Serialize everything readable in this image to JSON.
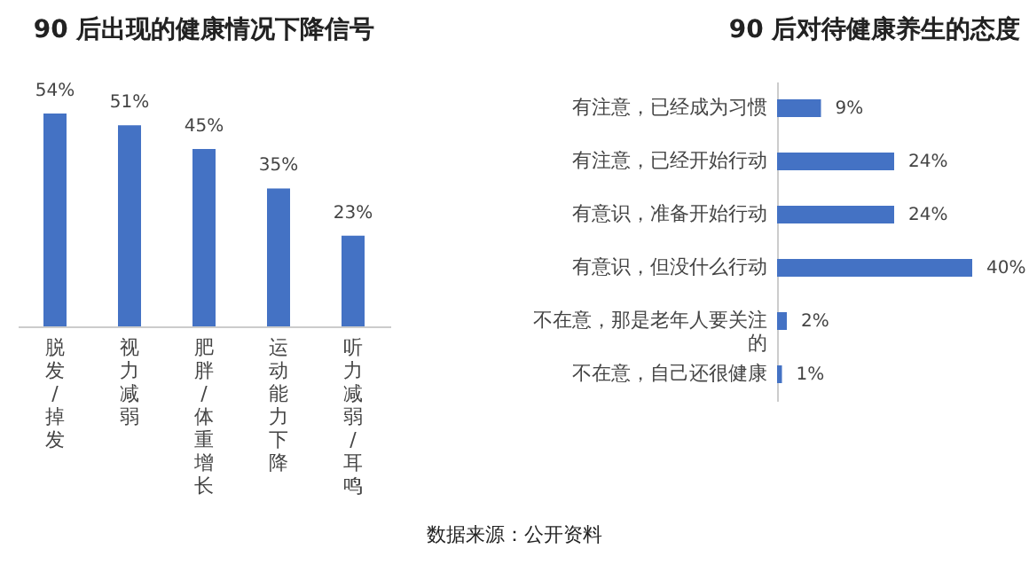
{
  "chart_data": [
    {
      "type": "bar",
      "title": "90 后出现的健康情况下降信号",
      "categories": [
        "脱发/掉发",
        "视力减弱",
        "肥胖/体重增长",
        "运动能力下降",
        "听力减弱/耳鸣"
      ],
      "values": [
        54,
        51,
        45,
        35,
        23
      ],
      "value_labels": [
        "54%",
        "51%",
        "45%",
        "35%",
        "23%"
      ],
      "color": "#4472c4",
      "annotations": [
        "数据来源：公开资料"
      ]
    },
    {
      "type": "bar",
      "orientation": "horizontal",
      "title": "90 后对待健康养生的态度",
      "categories": [
        "有注意，已经成为习惯",
        "有注意，已经开始行动",
        "有意识，准备开始行动",
        "有意识，但没什么行动",
        "不在意，那是老年人要关注的",
        "不在意，自己还很健康"
      ],
      "values": [
        9,
        24,
        24,
        40,
        2,
        1
      ],
      "value_labels": [
        "9%",
        "24%",
        "24%",
        "40%",
        "2%",
        "1%"
      ],
      "color": "#4472c4"
    }
  ]
}
